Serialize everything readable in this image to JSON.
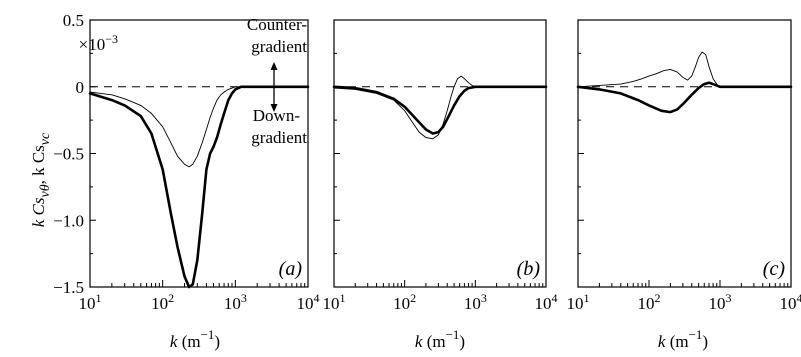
{
  "chart_data": [
    {
      "type": "line",
      "panel_label": "(a)",
      "x_scale": "log",
      "xlim": [
        10,
        10000
      ],
      "ylim": [
        -1.5,
        0.5
      ],
      "y_multiplier": "×10⁻³",
      "ylabel": "k Cs_vθ, k Cs_vc",
      "xlabel": "k (m⁻¹)",
      "annotations": [
        "Counter-",
        "gradient",
        "Down-",
        "gradient"
      ],
      "series": [
        {
          "style": "thick",
          "x": [
            10,
            20,
            30,
            50,
            70,
            100,
            130,
            160,
            200,
            230,
            260,
            300,
            350,
            400,
            450,
            500,
            560,
            630,
            700,
            800,
            900,
            1000,
            1200,
            1500,
            2000,
            10000
          ],
          "y": [
            -0.05,
            -0.1,
            -0.14,
            -0.22,
            -0.35,
            -0.62,
            -0.95,
            -1.2,
            -1.42,
            -1.5,
            -1.48,
            -1.3,
            -0.95,
            -0.62,
            -0.5,
            -0.45,
            -0.38,
            -0.28,
            -0.2,
            -0.1,
            -0.05,
            -0.02,
            0,
            0,
            0,
            0
          ]
        },
        {
          "style": "thin",
          "x": [
            10,
            20,
            30,
            50,
            70,
            100,
            130,
            160,
            200,
            230,
            260,
            300,
            350,
            400,
            450,
            500,
            560,
            630,
            700,
            800,
            900,
            1000,
            1200,
            10000
          ],
          "y": [
            -0.04,
            -0.06,
            -0.09,
            -0.14,
            -0.2,
            -0.3,
            -0.42,
            -0.52,
            -0.58,
            -0.6,
            -0.58,
            -0.52,
            -0.42,
            -0.32,
            -0.23,
            -0.16,
            -0.1,
            -0.06,
            -0.04,
            -0.02,
            -0.01,
            0,
            0,
            0
          ]
        }
      ]
    },
    {
      "type": "line",
      "panel_label": "(b)",
      "x_scale": "log",
      "xlim": [
        10,
        10000
      ],
      "ylim": [
        -1.5,
        0.5
      ],
      "xlabel": "k (m⁻¹)",
      "series": [
        {
          "style": "thick",
          "x": [
            10,
            20,
            40,
            70,
            100,
            150,
            200,
            250,
            300,
            350,
            420,
            500,
            600,
            700,
            800,
            1000,
            1200,
            10000
          ],
          "y": [
            0,
            -0.01,
            -0.04,
            -0.09,
            -0.15,
            -0.25,
            -0.32,
            -0.35,
            -0.34,
            -0.3,
            -0.22,
            -0.14,
            -0.07,
            -0.03,
            -0.01,
            0,
            0,
            0
          ]
        },
        {
          "style": "thin",
          "x": [
            10,
            20,
            40,
            70,
            100,
            130,
            160,
            200,
            250,
            300,
            350,
            400,
            450,
            500,
            560,
            630,
            700,
            800,
            900,
            1000,
            1200,
            10000
          ],
          "y": [
            -0.01,
            -0.02,
            -0.05,
            -0.1,
            -0.18,
            -0.27,
            -0.34,
            -0.38,
            -0.39,
            -0.36,
            -0.28,
            -0.18,
            -0.08,
            0,
            0.06,
            0.08,
            0.06,
            0.03,
            0.01,
            0,
            0,
            0
          ]
        }
      ]
    },
    {
      "type": "line",
      "panel_label": "(c)",
      "x_scale": "log",
      "xlim": [
        10,
        10000
      ],
      "ylim": [
        -1.5,
        0.5
      ],
      "xlabel": "k (m⁻¹)",
      "series": [
        {
          "style": "thick",
          "x": [
            10,
            20,
            40,
            70,
            100,
            150,
            200,
            250,
            300,
            400,
            500,
            600,
            700,
            800,
            1000,
            1200,
            10000
          ],
          "y": [
            0,
            -0.02,
            -0.05,
            -0.1,
            -0.14,
            -0.18,
            -0.19,
            -0.17,
            -0.13,
            -0.06,
            -0.01,
            0.02,
            0.03,
            0.02,
            0,
            0,
            0
          ]
        },
        {
          "style": "thin",
          "x": [
            10,
            20,
            40,
            60,
            80,
            100,
            130,
            160,
            200,
            250,
            300,
            350,
            400,
            450,
            500,
            560,
            630,
            700,
            800,
            900,
            1000,
            1200,
            10000
          ],
          "y": [
            0,
            0.01,
            0.02,
            0.04,
            0.06,
            0.08,
            0.1,
            0.12,
            0.13,
            0.11,
            0.07,
            0.05,
            0.08,
            0.15,
            0.22,
            0.26,
            0.24,
            0.15,
            0.06,
            0.02,
            0,
            0,
            0
          ]
        }
      ]
    }
  ],
  "texts": {
    "ylabel_main": "k Cs",
    "ylabel_sub1": "vθ",
    "ylabel_mid": ", k Cs",
    "ylabel_sub2": "vc",
    "xlabel_k": "k",
    "xlabel_unit": " (m",
    "xlabel_exp": "−1",
    "xlabel_close": ")",
    "multiplier_base": "×10",
    "multiplier_exp": "−3",
    "counter1": "Counter-",
    "counter2": "gradient",
    "down1": "Down-",
    "down2": "gradient",
    "y_ticks": [
      "0.5",
      "0",
      "−0.5",
      "−1.0",
      "−1.5"
    ],
    "x_tick_base": "10",
    "x_tick_exps": [
      "1",
      "2",
      "3",
      "4"
    ]
  }
}
